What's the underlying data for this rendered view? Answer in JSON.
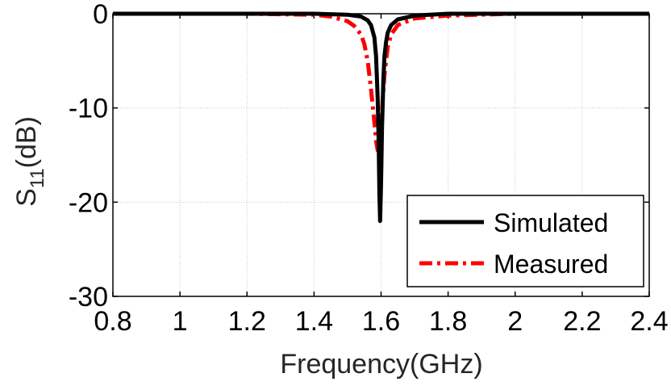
{
  "chart_data": {
    "type": "line",
    "title": "",
    "xlabel": "Frequency(GHz)",
    "ylabel_main": "S",
    "ylabel_sub": "11",
    "ylabel_suffix": "(dB)",
    "xlim": [
      0.8,
      2.4
    ],
    "ylim": [
      -30,
      0
    ],
    "xticks": [
      0.8,
      1,
      1.2,
      1.4,
      1.6,
      1.8,
      2,
      2.2,
      2.4
    ],
    "xtick_labels": [
      "0.8",
      "1",
      "1.2",
      "1.4",
      "1.6",
      "1.8",
      "2",
      "2.2",
      "2.4"
    ],
    "yticks": [
      0,
      -10,
      -20,
      -30
    ],
    "ytick_labels": [
      "0",
      "-10",
      "-20",
      "-30"
    ],
    "grid": true,
    "legend_position": "bottom-right",
    "series": [
      {
        "name": "Simulated",
        "color": "#000000",
        "style": "solid",
        "x": [
          0.8,
          1.0,
          1.2,
          1.4,
          1.5,
          1.54,
          1.56,
          1.57,
          1.58,
          1.585,
          1.59,
          1.593,
          1.595,
          1.597,
          1.6,
          1.603,
          1.607,
          1.61,
          1.615,
          1.62,
          1.63,
          1.65,
          1.7,
          1.8,
          2.0,
          2.2,
          2.4
        ],
        "y": [
          0,
          0,
          0,
          0,
          -0.1,
          -0.3,
          -0.7,
          -1.2,
          -2.5,
          -4.5,
          -9,
          -14,
          -19,
          -22,
          -18,
          -12,
          -7,
          -4.5,
          -3,
          -2,
          -1.2,
          -0.6,
          -0.2,
          0,
          0,
          0,
          0
        ]
      },
      {
        "name": "Measured",
        "color": "#ff0000",
        "style": "dashdot",
        "x": [
          0.8,
          1.0,
          1.2,
          1.4,
          1.45,
          1.5,
          1.52,
          1.54,
          1.55,
          1.56,
          1.57,
          1.58,
          1.585,
          1.59,
          1.595,
          1.6,
          1.605,
          1.61,
          1.62,
          1.63,
          1.65,
          1.7,
          1.8,
          2.0,
          2.2,
          2.4
        ],
        "y": [
          0,
          0,
          0,
          -0.1,
          -0.3,
          -0.8,
          -1.3,
          -2.2,
          -3.2,
          -5,
          -8,
          -11.5,
          -13.5,
          -14.5,
          -14,
          -12,
          -9,
          -6.5,
          -3.5,
          -2.2,
          -1.2,
          -0.5,
          -0.2,
          0,
          0,
          0
        ]
      }
    ]
  }
}
